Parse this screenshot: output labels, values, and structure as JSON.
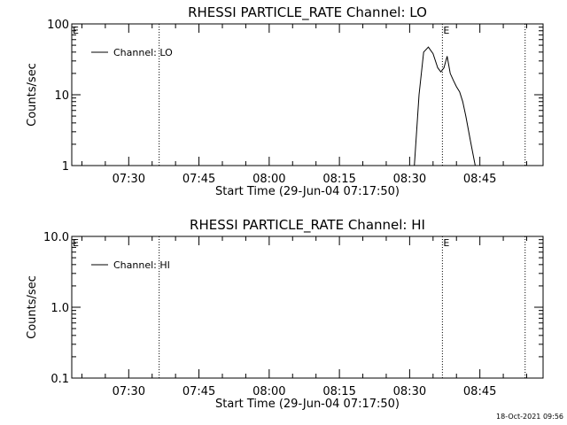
{
  "timestamp": "18-Oct-2021 09:56",
  "chart_data": [
    {
      "type": "line",
      "title": "RHESSI PARTICLE_RATE Channel: LO",
      "xlabel": "Start Time (29-Jun-04 07:17:50)",
      "ylabel": "Counts/sec",
      "yscale": "log",
      "ylim": [
        1,
        100
      ],
      "y_ticks": [
        1,
        10,
        100
      ],
      "y_tick_labels": [
        "1",
        "10",
        "100"
      ],
      "xlim": [
        "07:17:50",
        "08:58:30"
      ],
      "x_ticks": [
        "07:30",
        "07:45",
        "08:00",
        "08:15",
        "08:30",
        "08:45"
      ],
      "legend": {
        "position": "top-left",
        "entries": [
          "Channel: LO"
        ]
      },
      "markers": [
        {
          "time": "07:16:40",
          "label": "E"
        },
        {
          "time": "07:36:30",
          "label": ""
        },
        {
          "time": "08:37:00",
          "label": "E"
        },
        {
          "time": "08:54:40",
          "label": ""
        }
      ],
      "series": [
        {
          "name": "Channel: LO",
          "x": [
            "08:31:00",
            "08:32:00",
            "08:33:00",
            "08:34:00",
            "08:35:00",
            "08:36:00",
            "08:36:40",
            "08:37:20",
            "08:38:00",
            "08:38:40",
            "08:39:20",
            "08:40:00",
            "08:40:40",
            "08:41:20",
            "08:42:00",
            "08:43:00",
            "08:44:00"
          ],
          "values": [
            1,
            10,
            40,
            47,
            38,
            24,
            21,
            24,
            35,
            20,
            16,
            13,
            11,
            8,
            5,
            2.2,
            1
          ]
        }
      ]
    },
    {
      "type": "line",
      "title": "RHESSI PARTICLE_RATE Channel: HI",
      "xlabel": "Start Time (29-Jun-04 07:17:50)",
      "ylabel": "Counts/sec",
      "yscale": "log",
      "ylim": [
        0.1,
        10
      ],
      "y_ticks": [
        0.1,
        1,
        10
      ],
      "y_tick_labels": [
        "0.1",
        "1.0",
        "10.0"
      ],
      "xlim": [
        "07:17:50",
        "08:58:30"
      ],
      "x_ticks": [
        "07:30",
        "07:45",
        "08:00",
        "08:15",
        "08:30",
        "08:45"
      ],
      "legend": {
        "position": "top-left",
        "entries": [
          "Channel: HI"
        ]
      },
      "markers": [
        {
          "time": "07:16:40",
          "label": "E"
        },
        {
          "time": "07:36:30",
          "label": ""
        },
        {
          "time": "08:37:00",
          "label": "E"
        },
        {
          "time": "08:54:40",
          "label": ""
        }
      ],
      "series": [
        {
          "name": "Channel: HI",
          "x": [],
          "values": []
        }
      ]
    }
  ]
}
